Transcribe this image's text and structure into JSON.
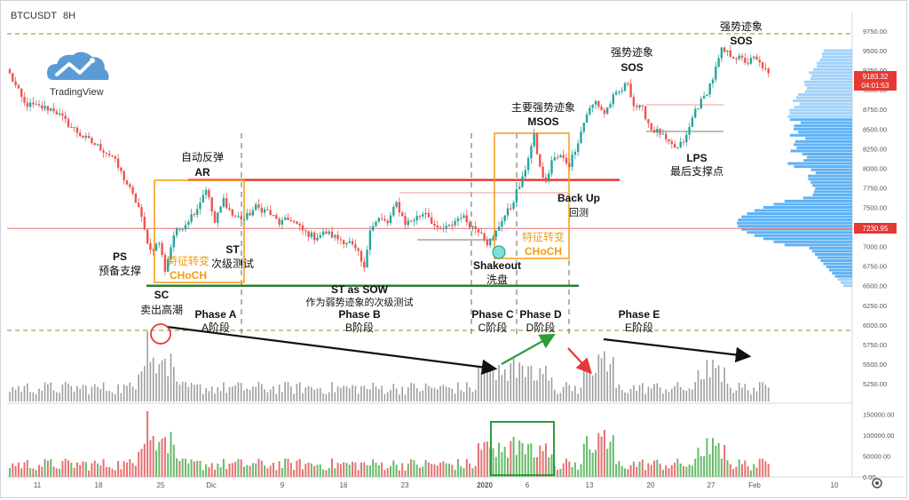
{
  "header": {
    "symbol": "BTCUSDT",
    "interval": "8H"
  },
  "logo": {
    "text": "TradingView"
  },
  "colors": {
    "up": "#26a69a",
    "down": "#ef5350",
    "up_vol": "#66bb6a",
    "down_vol": "#e57373",
    "grey_vol": "#9e9e9e",
    "resistance": "#e53935",
    "support": "#2e7d32",
    "box": "#f39c12",
    "profile": "#42a5f5",
    "profile_light": "#90caf9",
    "price_label": "#e53935",
    "wyckoff_arrow": "#111111"
  },
  "right_axis": {
    "ticks": [
      "9750.00",
      "9500.00",
      "9250.00",
      "9000.00",
      "8750.00",
      "8500.00",
      "8250.00",
      "8000.00",
      "7750.00",
      "7500.00",
      "7250.00",
      "7000.00",
      "6750.00",
      "6500.00",
      "6250.00",
      "6000.00",
      "5750.00",
      "5500.00",
      "5250.00"
    ],
    "price_label_1": "9183.32",
    "price_label_2": "04:01:53",
    "level_label": "7230.95"
  },
  "vol_axis": {
    "ticks": [
      "150000.00",
      "100000.00",
      "50000.00",
      "0.00"
    ]
  },
  "x_axis": {
    "ticks": [
      "11",
      "18",
      "25",
      "Dic",
      "9",
      "16",
      "23",
      "2020",
      "6",
      "13",
      "20",
      "27",
      "Feb",
      "10"
    ]
  },
  "annotations": {
    "ps": "PS",
    "ps_cn": "预备支撑",
    "sc": "SC",
    "sc_cn": "卖出高潮",
    "ar_cn": "自动反弹",
    "ar": "AR",
    "st": "ST",
    "st_cn": "次级测试",
    "choch_cn": "特征转变",
    "choch": "CHoCH",
    "st_sow": "ST as SOW",
    "st_sow_cn": "作为弱势迹象的次级测试",
    "phase_a": "Phase A",
    "phase_a_cn": "A阶段",
    "phase_b": "Phase B",
    "phase_b_cn": "B阶段",
    "phase_c": "Phase C",
    "phase_c_cn": "C阶段",
    "phase_d": "Phase D",
    "phase_d_cn": "D阶段",
    "phase_e": "Phase E",
    "phase_e_cn": "E阶段",
    "shakeout": "Shakeout",
    "shakeout_cn": "洗盘",
    "msos_cn": "主要强势迹象",
    "msos": "MSOS",
    "sos_cn": "强势迹象",
    "sos": "SOS",
    "sos2_cn": "强势迹象",
    "sos2": "SOS",
    "backup": "Back Up",
    "backup_cn": "回测",
    "choch2_cn": "特征转变",
    "choch2": "CHoCH",
    "lps": "LPS",
    "lps_cn": "最后支撑点"
  },
  "chart_data": {
    "type": "candlestick",
    "title": "BTCUSDT 8H",
    "ylim": [
      5000,
      9850
    ],
    "x_ticks": [
      "11",
      "18",
      "25",
      "Dic",
      "9",
      "16",
      "23",
      "2020",
      "6",
      "13",
      "20",
      "27",
      "Feb",
      "10"
    ],
    "close_anchors": [
      [
        0,
        9200
      ],
      [
        5,
        8820
      ],
      [
        10,
        8780
      ],
      [
        15,
        8750
      ],
      [
        20,
        8560
      ],
      [
        25,
        8400
      ],
      [
        30,
        8280
      ],
      [
        35,
        8150
      ],
      [
        40,
        7800
      ],
      [
        44,
        7500
      ],
      [
        46,
        7200
      ],
      [
        48,
        6950
      ],
      [
        51,
        7050
      ],
      [
        53,
        6700
      ],
      [
        56,
        7150
      ],
      [
        60,
        7300
      ],
      [
        64,
        7500
      ],
      [
        67,
        7750
      ],
      [
        70,
        7300
      ],
      [
        73,
        7600
      ],
      [
        76,
        7400
      ],
      [
        80,
        7350
      ],
      [
        84,
        7500
      ],
      [
        88,
        7450
      ],
      [
        92,
        7300
      ],
      [
        96,
        7350
      ],
      [
        100,
        7200
      ],
      [
        104,
        7120
      ],
      [
        108,
        7180
      ],
      [
        112,
        7100
      ],
      [
        116,
        7050
      ],
      [
        119,
        6900
      ],
      [
        121,
        6700
      ],
      [
        123,
        7250
      ],
      [
        126,
        7350
      ],
      [
        129,
        7300
      ],
      [
        132,
        7550
      ],
      [
        135,
        7300
      ],
      [
        138,
        7350
      ],
      [
        142,
        7450
      ],
      [
        146,
        7200
      ],
      [
        150,
        7250
      ],
      [
        154,
        7400
      ],
      [
        158,
        7250
      ],
      [
        161,
        7200
      ],
      [
        163,
        7050
      ],
      [
        165,
        7100
      ],
      [
        168,
        7350
      ],
      [
        171,
        7500
      ],
      [
        173,
        7700
      ],
      [
        175,
        7850
      ],
      [
        177,
        8150
      ],
      [
        179,
        8400
      ],
      [
        181,
        8000
      ],
      [
        183,
        7800
      ],
      [
        185,
        8100
      ],
      [
        188,
        8150
      ],
      [
        191,
        8050
      ],
      [
        194,
        8350
      ],
      [
        197,
        8700
      ],
      [
        200,
        8850
      ],
      [
        203,
        8700
      ],
      [
        206,
        8900
      ],
      [
        209,
        9000
      ],
      [
        211,
        9100
      ],
      [
        213,
        8800
      ],
      [
        216,
        8750
      ],
      [
        219,
        8500
      ],
      [
        222,
        8450
      ],
      [
        225,
        8300
      ],
      [
        228,
        8250
      ],
      [
        231,
        8400
      ],
      [
        234,
        8750
      ],
      [
        237,
        8900
      ],
      [
        240,
        9150
      ],
      [
        243,
        9500
      ],
      [
        246,
        9450
      ],
      [
        249,
        9400
      ],
      [
        252,
        9350
      ],
      [
        254,
        9400
      ],
      [
        257,
        9300
      ],
      [
        259,
        9183
      ]
    ],
    "volume_highlights": {
      "sc": 158000,
      "phase_c_max": 95000,
      "phase_e_max": 120000
    },
    "levels": {
      "resistance": 7850,
      "support": 6500,
      "current": 7231
    }
  }
}
